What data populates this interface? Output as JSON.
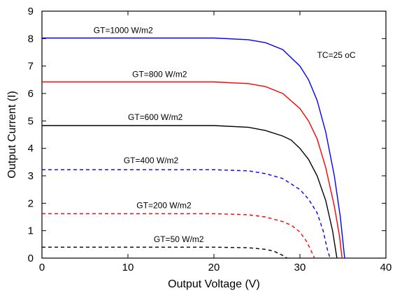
{
  "chart_data": {
    "type": "line",
    "title": "",
    "xlabel": "Output Voltage (V)",
    "ylabel": "Output Current (I)",
    "xlim": [
      0,
      40
    ],
    "ylim": [
      0,
      9
    ],
    "xticks": [
      0,
      10,
      20,
      30,
      40
    ],
    "yticks": [
      0,
      1,
      2,
      3,
      4,
      5,
      6,
      7,
      8,
      9
    ],
    "grid": false,
    "legend": "none",
    "annotation": "TC=25 oC",
    "series": [
      {
        "name": "GT=1000 W/m2",
        "color": "#0000ff",
        "dash": "solid",
        "points": [
          [
            0,
            8.02
          ],
          [
            10,
            8.02
          ],
          [
            20,
            8.02
          ],
          [
            24,
            7.96
          ],
          [
            26,
            7.85
          ],
          [
            28,
            7.6
          ],
          [
            30,
            7.0
          ],
          [
            31,
            6.5
          ],
          [
            32,
            5.75
          ],
          [
            33,
            4.6
          ],
          [
            34,
            3.0
          ],
          [
            34.7,
            1.5
          ],
          [
            35.2,
            0
          ]
        ]
      },
      {
        "name": "GT=800 W/m2",
        "color": "#ff0000",
        "dash": "solid",
        "points": [
          [
            0,
            6.42
          ],
          [
            10,
            6.42
          ],
          [
            20,
            6.42
          ],
          [
            24,
            6.36
          ],
          [
            26,
            6.25
          ],
          [
            28,
            6.0
          ],
          [
            30,
            5.45
          ],
          [
            31,
            5.0
          ],
          [
            32,
            4.35
          ],
          [
            33,
            3.3
          ],
          [
            34,
            1.9
          ],
          [
            34.6,
            0.8
          ],
          [
            34.9,
            0
          ]
        ]
      },
      {
        "name": "GT=600 W/m2",
        "color": "#000000",
        "dash": "solid",
        "points": [
          [
            0,
            4.83
          ],
          [
            10,
            4.83
          ],
          [
            20,
            4.83
          ],
          [
            24,
            4.77
          ],
          [
            26,
            4.65
          ],
          [
            28,
            4.45
          ],
          [
            29,
            4.3
          ],
          [
            30,
            4.0
          ],
          [
            31,
            3.6
          ],
          [
            32,
            3.0
          ],
          [
            33,
            2.1
          ],
          [
            33.8,
            1.0
          ],
          [
            34.3,
            0
          ]
        ]
      },
      {
        "name": "GT=400 W/m2",
        "color": "#0000ff",
        "dash": "dashed",
        "points": [
          [
            0,
            3.22
          ],
          [
            10,
            3.22
          ],
          [
            20,
            3.22
          ],
          [
            24,
            3.18
          ],
          [
            26,
            3.08
          ],
          [
            28,
            2.9
          ],
          [
            30,
            2.5
          ],
          [
            31,
            2.15
          ],
          [
            32,
            1.65
          ],
          [
            32.7,
            1.0
          ],
          [
            33.2,
            0.3
          ],
          [
            33.5,
            0
          ]
        ]
      },
      {
        "name": "GT=200 W/m2",
        "color": "#ff0000",
        "dash": "dashed",
        "points": [
          [
            0,
            1.62
          ],
          [
            10,
            1.62
          ],
          [
            20,
            1.62
          ],
          [
            24,
            1.58
          ],
          [
            26,
            1.5
          ],
          [
            28,
            1.33
          ],
          [
            29,
            1.2
          ],
          [
            30,
            0.95
          ],
          [
            30.8,
            0.6
          ],
          [
            31.4,
            0.2
          ],
          [
            31.7,
            0
          ]
        ]
      },
      {
        "name": "GT=50 W/m2",
        "color": "#000000",
        "dash": "dashed",
        "points": [
          [
            0,
            0.4
          ],
          [
            10,
            0.4
          ],
          [
            20,
            0.4
          ],
          [
            24,
            0.38
          ],
          [
            26,
            0.32
          ],
          [
            27,
            0.25
          ],
          [
            28,
            0.1
          ],
          [
            28.5,
            0
          ]
        ]
      }
    ]
  }
}
